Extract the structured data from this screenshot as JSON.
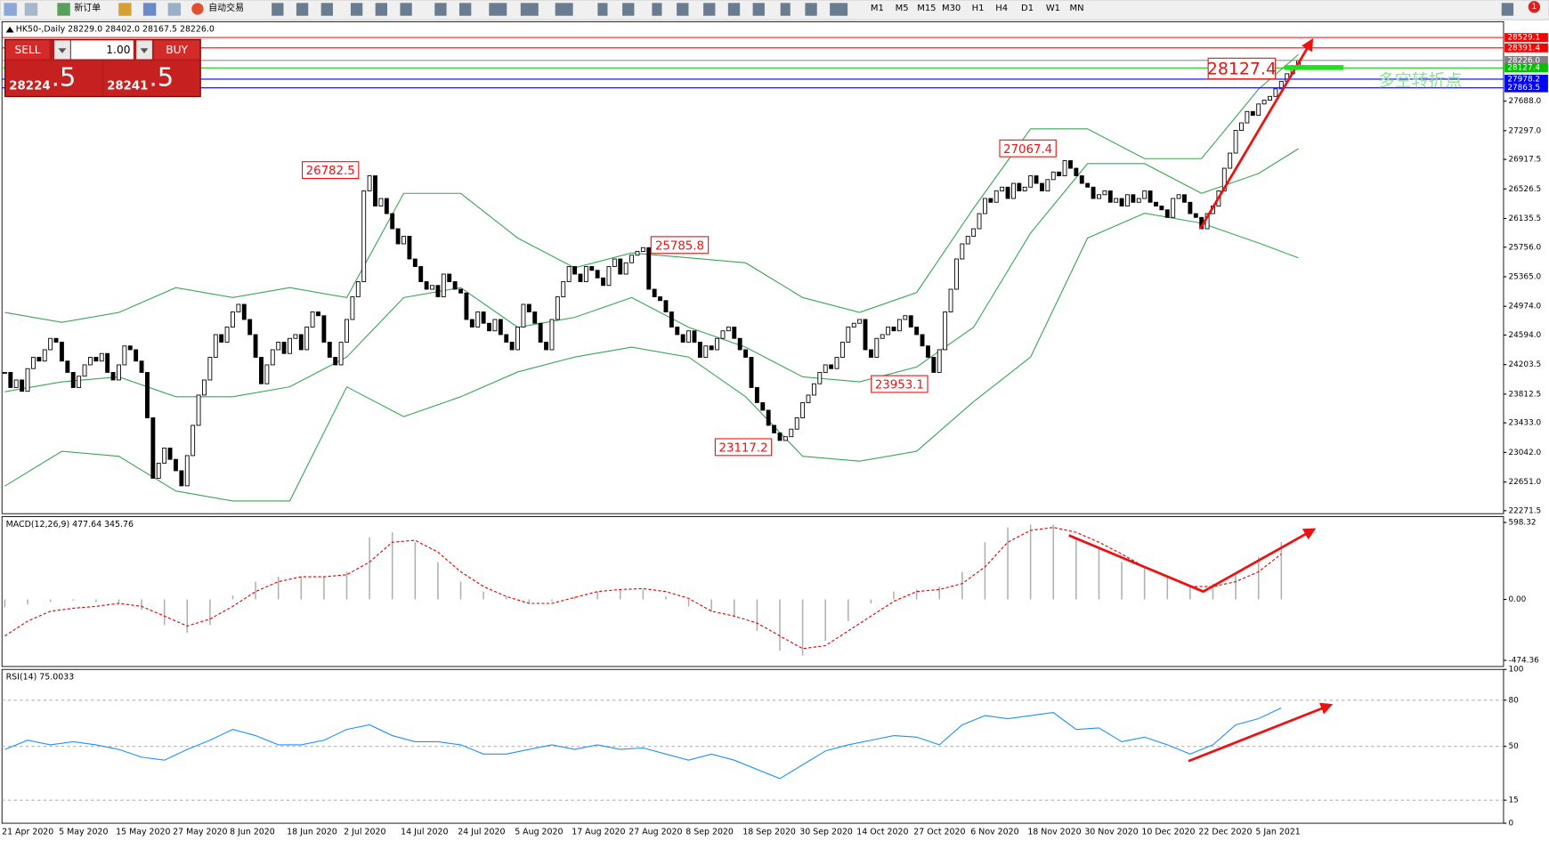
{
  "toolbar": {
    "new_order": "新订单",
    "auto_trading": "自动交易",
    "timeframes": [
      "M1",
      "M5",
      "M15",
      "M30",
      "H1",
      "H4",
      "D1",
      "W1",
      "MN"
    ],
    "notifications": 1
  },
  "trade_panel": {
    "sell": "SELL",
    "buy": "BUY",
    "volume": "1.00",
    "bid_main": "28224",
    "bid_pips": ".5",
    "ask_main": "28241",
    "ask_pips": ".5"
  },
  "chart_data": [
    {
      "type": "candlestick",
      "title": "HK50-,Daily 28229.0 28402.0 28167.5 28226.0",
      "categories": [
        "21 Apr 2020",
        null,
        null,
        null,
        null,
        null,
        null,
        null,
        null,
        null,
        "5 May 2020",
        null,
        null,
        null,
        null,
        null,
        null,
        null,
        null,
        null,
        "15 May 2020",
        null,
        null,
        null,
        null,
        null,
        null,
        null,
        null,
        null,
        "27 May 2020",
        null,
        null,
        null,
        null,
        null,
        null,
        null,
        null,
        null,
        "8 Jun 2020",
        null,
        null,
        null,
        null,
        null,
        null,
        null,
        null,
        null,
        "18 Jun 2020",
        null,
        null,
        null,
        null,
        null,
        null,
        null,
        null,
        null,
        "2 Jul 2020",
        null,
        null,
        null,
        null,
        null,
        null,
        null,
        null,
        null,
        "14 Jul 2020",
        null,
        null,
        null,
        null,
        null,
        null,
        null,
        null,
        null,
        "24 Jul 2020",
        null,
        null,
        null,
        null,
        null,
        null,
        null,
        null,
        null,
        "5 Aug 2020",
        null,
        null,
        null,
        null,
        null,
        null,
        null,
        null,
        null,
        "17 Aug 2020",
        null,
        null,
        null,
        null,
        null,
        null,
        null,
        null,
        null,
        "27 Aug 2020",
        null,
        null,
        null,
        null,
        null,
        null,
        null,
        null,
        null,
        "8 Sep 2020",
        null,
        null,
        null,
        null,
        null,
        null,
        null,
        null,
        null,
        "18 Sep 2020",
        null,
        null,
        null,
        null,
        null,
        null,
        null,
        null,
        null,
        "30 Sep 2020",
        null,
        null,
        null,
        null,
        null,
        null,
        null,
        null,
        null,
        "14 Oct 2020",
        null,
        null,
        null,
        null,
        null,
        null,
        null,
        null,
        null,
        "27 Oct 2020",
        null,
        null,
        null,
        null,
        null,
        null,
        null,
        null,
        null,
        "6 Nov 2020",
        null,
        null,
        null,
        null,
        null,
        null,
        null,
        null,
        null,
        "18 Nov 2020",
        null,
        null,
        null,
        null,
        null,
        null,
        null,
        null,
        null,
        "30 Nov 2020",
        null,
        null,
        null,
        null,
        null,
        null,
        null,
        null,
        null,
        "10 Dec 2020",
        null,
        null,
        null,
        null,
        null,
        null,
        null,
        null,
        null,
        "22 Dec 2020",
        null,
        null,
        null,
        null,
        null,
        null,
        null,
        null,
        null,
        "5 Jan 2021",
        null,
        null,
        null,
        null,
        null,
        null,
        null
      ],
      "close": [
        24100,
        23900,
        24000,
        23850,
        24150,
        24300,
        24250,
        24400,
        24550,
        24500,
        24250,
        24100,
        23900,
        24050,
        24200,
        24300,
        24250,
        24350,
        24100,
        24000,
        24200,
        24450,
        24400,
        24250,
        24100,
        23500,
        22700,
        22900,
        23100,
        22950,
        22800,
        22600,
        23000,
        23400,
        23800,
        24000,
        24300,
        24600,
        24500,
        24700,
        24900,
        25000,
        24800,
        24600,
        24300,
        23950,
        24200,
        24400,
        24500,
        24350,
        24550,
        24600,
        24400,
        24700,
        24900,
        24850,
        24500,
        24300,
        24200,
        24500,
        24800,
        25100,
        25300,
        26500,
        26700,
        26300,
        26400,
        26200,
        26000,
        25800,
        25900,
        25600,
        25500,
        25300,
        25200,
        25250,
        25100,
        25400,
        25300,
        25200,
        25150,
        24800,
        24700,
        24900,
        24750,
        24650,
        24800,
        24600,
        24500,
        24400,
        24700,
        25000,
        24900,
        24750,
        24500,
        24400,
        24800,
        25100,
        25300,
        25500,
        25400,
        25300,
        25500,
        25450,
        25350,
        25250,
        25500,
        25600,
        25400,
        25550,
        25650,
        25700,
        25750,
        25200,
        25100,
        25050,
        24900,
        24700,
        24600,
        24500,
        24650,
        24500,
        24300,
        24450,
        24400,
        24550,
        24650,
        24700,
        24550,
        24400,
        24300,
        23900,
        23700,
        23600,
        23400,
        23300,
        23200,
        23250,
        23350,
        23500,
        23700,
        23800,
        23950,
        24100,
        24200,
        24150,
        24300,
        24500,
        24700,
        24750,
        24800,
        24400,
        24300,
        24550,
        24600,
        24700,
        24650,
        24800,
        24850,
        24700,
        24600,
        24450,
        24300,
        24100,
        24400,
        24900,
        25200,
        25600,
        25800,
        25900,
        26000,
        26200,
        26400,
        26350,
        26500,
        26550,
        26400,
        26600,
        26500,
        26550,
        26700,
        26600,
        26500,
        26650,
        26750,
        26700,
        26900,
        26800,
        26700,
        26600,
        26550,
        26400,
        26450,
        26500,
        26350,
        26400,
        26300,
        26450,
        26350,
        26400,
        26500,
        26350,
        26300,
        26250,
        26150,
        26400,
        26450,
        26350,
        26200,
        26150,
        26000,
        26200,
        26300,
        26500,
        26800,
        27000,
        27300,
        27400,
        27550,
        27500,
        27650,
        27700,
        27750,
        27850,
        27950,
        28050,
        28150,
        28226
      ],
      "xlim": [
        -0.5,
        263
      ],
      "ylim": [
        22232,
        28738
      ],
      "grid": false,
      "yticks": [
        22271.5,
        {
          "value": 22651,
          "label": "22651.0"
        },
        {
          "value": 23042,
          "label": "23042.0"
        },
        {
          "value": 23433,
          "label": "23433.0"
        },
        23812.5,
        24203.5,
        {
          "value": 24594,
          "label": "24594.0"
        },
        {
          "value": 24974,
          "label": "24974.0"
        },
        {
          "value": 25365,
          "label": "25365.0"
        },
        {
          "value": 25756,
          "label": "25756.0"
        },
        26135.5,
        26526.5,
        26917.5,
        {
          "value": 27297,
          "label": "27297.0"
        },
        {
          "value": 27688,
          "label": "27688.0"
        }
      ],
      "bands": {
        "color": "#3aa655",
        "x": [
          0,
          10,
          20,
          30,
          40,
          50,
          60,
          70,
          80,
          90,
          100,
          110,
          120,
          130,
          140,
          150,
          160,
          170,
          180,
          190,
          200,
          210,
          220,
          227
        ],
        "upper": [
          24893,
          24762,
          24893,
          25221,
          25090,
          25221,
          25090,
          26468,
          26468,
          25877,
          25483,
          25680,
          25615,
          25549,
          25090,
          24893,
          25156,
          26271,
          27321,
          27321,
          26927,
          26927,
          27845,
          28304
        ],
        "middle": [
          23844,
          23975,
          24041,
          23778,
          23778,
          23910,
          24303,
          25090,
          25221,
          24697,
          24828,
          25090,
          24697,
          24434,
          24041,
          23975,
          24172,
          24697,
          25943,
          26861,
          26861,
          26468,
          26730,
          27058
        ],
        "lower": [
          22597,
          23057,
          22991,
          22532,
          22400,
          22400,
          23909,
          23516,
          23778,
          24106,
          24303,
          24434,
          24303,
          23778,
          22991,
          22926,
          23057,
          23713,
          24303,
          25877,
          26205,
          26074,
          25812,
          25615
        ]
      },
      "price_levels": [
        {
          "value": 28529.1,
          "color": "#ff0000"
        },
        {
          "value": 28391.4,
          "color": "#ff0000"
        },
        {
          "value": 28226,
          "label": "28226.0",
          "color": "#808080"
        },
        {
          "value": 28127.4,
          "color": "#00c000"
        },
        {
          "value": 27978.2,
          "color": "#0000ff"
        },
        {
          "value": 27863.5,
          "color": "#0000ff"
        }
      ],
      "annotations": [
        26782.5,
        25785.8,
        23117.2,
        23953.1,
        27067.4,
        28127.4
      ],
      "pivot_note": "多空转折点"
    },
    {
      "type": "macd",
      "title": "MACD(12,26,9) 477.64 345.76",
      "x": [
        0,
        4,
        8,
        12,
        16,
        20,
        24,
        28,
        32,
        36,
        40,
        44,
        48,
        52,
        56,
        60,
        64,
        68,
        72,
        76,
        80,
        84,
        88,
        92,
        96,
        100,
        104,
        108,
        112,
        116,
        120,
        124,
        128,
        132,
        136,
        140,
        144,
        148,
        152,
        156,
        160,
        164,
        168,
        172,
        176,
        180,
        184,
        188,
        192,
        196,
        200,
        204,
        208,
        212,
        216,
        220,
        224
      ],
      "histogram": [
        -60,
        -40,
        -20,
        -10,
        -20,
        -30,
        -80,
        -200,
        -260,
        -200,
        30,
        138,
        176,
        176,
        176,
        215,
        483,
        522,
        445,
        291,
        138,
        61,
        23,
        -31,
        -15,
        23,
        61,
        77,
        77,
        23,
        -54,
        -92,
        -130,
        -245,
        -399,
        -437,
        -322,
        -169,
        -31,
        61,
        77,
        100,
        215,
        445,
        560,
        583,
        583,
        483,
        407,
        291,
        253,
        176,
        100,
        123,
        215,
        330,
        445
      ],
      "signal": [
        -284,
        -169,
        -92,
        -69,
        -54,
        -31,
        -54,
        -130,
        -207,
        -153,
        -54,
        61,
        138,
        176,
        176,
        192,
        291,
        445,
        460,
        368,
        215,
        100,
        23,
        -31,
        -31,
        15,
        61,
        77,
        84,
        61,
        8,
        -92,
        -130,
        -184,
        -284,
        -383,
        -360,
        -245,
        -130,
        -15,
        61,
        77,
        123,
        253,
        445,
        537,
        560,
        522,
        445,
        353,
        253,
        176,
        100,
        100,
        138,
        215,
        353
      ],
      "xlim": [
        -0.5,
        263
      ],
      "ylim": [
        -522,
        644
      ],
      "grid": false,
      "yticks": [
        598.32,
        {
          "value": 0,
          "label": "0.00"
        },
        -474.36
      ]
    },
    {
      "type": "line",
      "title": "RSI(14) 75.0033",
      "x": [
        0,
        4,
        8,
        12,
        16,
        20,
        24,
        28,
        32,
        36,
        40,
        44,
        48,
        52,
        56,
        60,
        64,
        68,
        72,
        76,
        80,
        84,
        88,
        92,
        96,
        100,
        104,
        108,
        112,
        116,
        120,
        124,
        128,
        132,
        136,
        140,
        144,
        148,
        152,
        156,
        160,
        164,
        168,
        172,
        176,
        180,
        184,
        188,
        192,
        196,
        200,
        204,
        208,
        212,
        216,
        220,
        224
      ],
      "values": [
        48,
        54,
        51,
        53,
        51,
        48,
        43,
        41,
        48,
        54,
        61,
        57,
        51,
        51,
        54,
        61,
        64,
        57,
        53,
        53,
        51,
        45,
        45,
        48,
        51,
        48,
        51,
        48,
        49,
        45,
        41,
        45,
        41,
        35,
        29,
        38,
        47,
        51,
        54,
        57,
        56,
        51,
        64,
        70,
        68,
        70,
        72,
        61,
        62,
        53,
        56,
        51,
        45,
        51,
        64,
        68,
        75
      ],
      "color": "#1e90ff",
      "xlim": [
        -0.5,
        263
      ],
      "ylim": [
        0,
        100
      ],
      "grid": true,
      "yticks": [
        100,
        80,
        50,
        15,
        0
      ]
    }
  ]
}
